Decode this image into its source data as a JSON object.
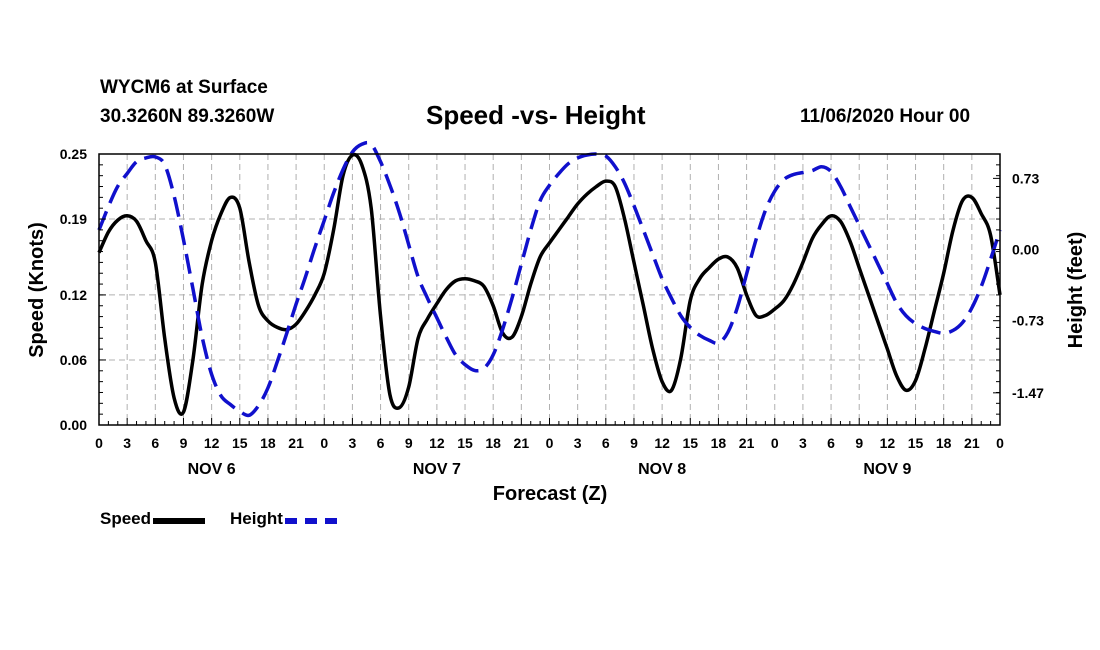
{
  "header": {
    "station": "WYCM6 at Surface",
    "coords": "30.3260N 89.3260W",
    "title": "Speed -vs- Height",
    "timestamp": "11/06/2020 Hour 00"
  },
  "colors": {
    "speed": "#000000",
    "height": "#1010cc",
    "grid": "#b0b0b0"
  },
  "legend": {
    "speed_label": "Speed",
    "height_label": "Height"
  },
  "chart_data": {
    "type": "line",
    "xlabel": "Forecast (Z)",
    "ylabel": "Speed (Knots)",
    "y2label": "Height (feet)",
    "xlim": [
      0,
      96
    ],
    "ylim": [
      0,
      0.25
    ],
    "y2lim": [
      -1.8,
      0.98
    ],
    "x_ticks": [
      0,
      3,
      6,
      9,
      12,
      15,
      18,
      21,
      24,
      27,
      30,
      33,
      36,
      39,
      42,
      45,
      48,
      51,
      54,
      57,
      60,
      63,
      66,
      69,
      72,
      75,
      78,
      81,
      84,
      87,
      90,
      93,
      96
    ],
    "x_tick_labels": [
      "0",
      "3",
      "6",
      "9",
      "12",
      "15",
      "18",
      "21",
      "0",
      "3",
      "6",
      "9",
      "12",
      "15",
      "18",
      "21",
      "0",
      "3",
      "6",
      "9",
      "12",
      "15",
      "18",
      "21",
      "0",
      "3",
      "6",
      "9",
      "12",
      "15",
      "18",
      "21",
      "0"
    ],
    "day_labels": [
      {
        "label": "NOV 6",
        "x": 12
      },
      {
        "label": "NOV 7",
        "x": 36
      },
      {
        "label": "NOV 8",
        "x": 60
      },
      {
        "label": "NOV 9",
        "x": 84
      }
    ],
    "y_ticks": [
      0.0,
      0.06,
      0.12,
      0.19,
      0.25
    ],
    "y_tick_labels": [
      "0.00",
      "0.06",
      "0.12",
      "0.19",
      "0.25"
    ],
    "y2_ticks": [
      0.73,
      0.0,
      -0.73,
      -1.47
    ],
    "y2_tick_labels": [
      "0.73",
      "0.00",
      "-0.73",
      "-1.47"
    ],
    "series": [
      {
        "name": "Speed",
        "axis": "left",
        "style": "solid",
        "x": [
          0,
          1,
          2,
          3,
          4,
          5,
          6,
          7,
          8,
          9,
          10,
          11,
          12,
          13,
          14,
          15,
          16,
          17,
          18,
          19,
          20,
          21,
          22,
          23,
          24,
          25,
          26,
          27,
          28,
          29,
          30,
          31,
          32,
          33,
          34,
          35,
          36,
          37,
          38,
          39,
          40,
          41,
          42,
          43,
          44,
          45,
          46,
          47,
          48,
          49,
          50,
          51,
          52,
          53,
          54,
          55,
          56,
          57,
          58,
          59,
          60,
          61,
          62,
          63,
          64,
          65,
          66,
          67,
          68,
          69,
          70,
          71,
          72,
          73,
          74,
          75,
          76,
          77,
          78,
          79,
          80,
          81,
          82,
          83,
          84,
          85,
          86,
          87,
          88,
          89,
          90,
          91,
          92,
          93,
          94,
          95,
          96
        ],
        "values": [
          0.159,
          0.178,
          0.189,
          0.193,
          0.188,
          0.17,
          0.15,
          0.08,
          0.025,
          0.012,
          0.06,
          0.13,
          0.17,
          0.195,
          0.21,
          0.2,
          0.15,
          0.11,
          0.096,
          0.09,
          0.088,
          0.093,
          0.105,
          0.12,
          0.14,
          0.18,
          0.23,
          0.249,
          0.24,
          0.2,
          0.1,
          0.028,
          0.016,
          0.035,
          0.08,
          0.098,
          0.112,
          0.125,
          0.133,
          0.135,
          0.133,
          0.128,
          0.11,
          0.085,
          0.081,
          0.1,
          0.13,
          0.155,
          0.168,
          0.18,
          0.192,
          0.204,
          0.213,
          0.22,
          0.225,
          0.22,
          0.19,
          0.15,
          0.11,
          0.07,
          0.04,
          0.032,
          0.062,
          0.115,
          0.135,
          0.145,
          0.153,
          0.155,
          0.145,
          0.12,
          0.101,
          0.101,
          0.107,
          0.115,
          0.13,
          0.15,
          0.172,
          0.185,
          0.193,
          0.188,
          0.17,
          0.145,
          0.12,
          0.095,
          0.07,
          0.045,
          0.032,
          0.041,
          0.07,
          0.105,
          0.14,
          0.18,
          0.207,
          0.21,
          0.195,
          0.175,
          0.12
        ]
      },
      {
        "name": "Height",
        "axis": "right",
        "style": "dashed",
        "x": [
          0,
          1,
          2,
          3,
          4,
          5,
          6,
          7,
          8,
          9,
          10,
          11,
          12,
          13,
          14,
          15,
          16,
          17,
          18,
          19,
          20,
          21,
          22,
          23,
          24,
          25,
          26,
          27,
          28,
          29,
          30,
          31,
          32,
          33,
          34,
          35,
          36,
          37,
          38,
          39,
          40,
          41,
          42,
          43,
          44,
          45,
          46,
          47,
          48,
          49,
          50,
          51,
          52,
          53,
          54,
          55,
          56,
          57,
          58,
          59,
          60,
          61,
          62,
          63,
          64,
          65,
          66,
          67,
          68,
          69,
          70,
          71,
          72,
          73,
          74,
          75,
          76,
          77,
          78,
          79,
          80,
          81,
          82,
          83,
          84,
          85,
          86,
          87,
          88,
          89,
          90,
          91,
          92,
          93,
          94,
          95,
          96
        ],
        "values": [
          0.2,
          0.44,
          0.65,
          0.78,
          0.9,
          0.94,
          0.95,
          0.87,
          0.55,
          0.1,
          -0.4,
          -0.9,
          -1.28,
          -1.5,
          -1.59,
          -1.66,
          -1.7,
          -1.6,
          -1.42,
          -1.15,
          -0.86,
          -0.56,
          -0.28,
          0.02,
          0.3,
          0.58,
          0.82,
          1.0,
          1.08,
          1.08,
          0.9,
          0.66,
          0.38,
          0.05,
          -0.28,
          -0.5,
          -0.7,
          -0.9,
          -1.08,
          -1.18,
          -1.24,
          -1.22,
          -1.08,
          -0.82,
          -0.5,
          -0.15,
          0.2,
          0.5,
          0.66,
          0.78,
          0.88,
          0.94,
          0.97,
          0.98,
          0.96,
          0.85,
          0.68,
          0.45,
          0.2,
          -0.05,
          -0.3,
          -0.5,
          -0.68,
          -0.8,
          -0.88,
          -0.93,
          -0.96,
          -0.85,
          -0.6,
          -0.25,
          0.1,
          0.4,
          0.6,
          0.72,
          0.77,
          0.79,
          0.81,
          0.85,
          0.8,
          0.65,
          0.45,
          0.25,
          0.05,
          -0.15,
          -0.35,
          -0.55,
          -0.68,
          -0.76,
          -0.81,
          -0.84,
          -0.86,
          -0.83,
          -0.75,
          -0.6,
          -0.38,
          -0.1,
          0.2
        ]
      }
    ]
  }
}
